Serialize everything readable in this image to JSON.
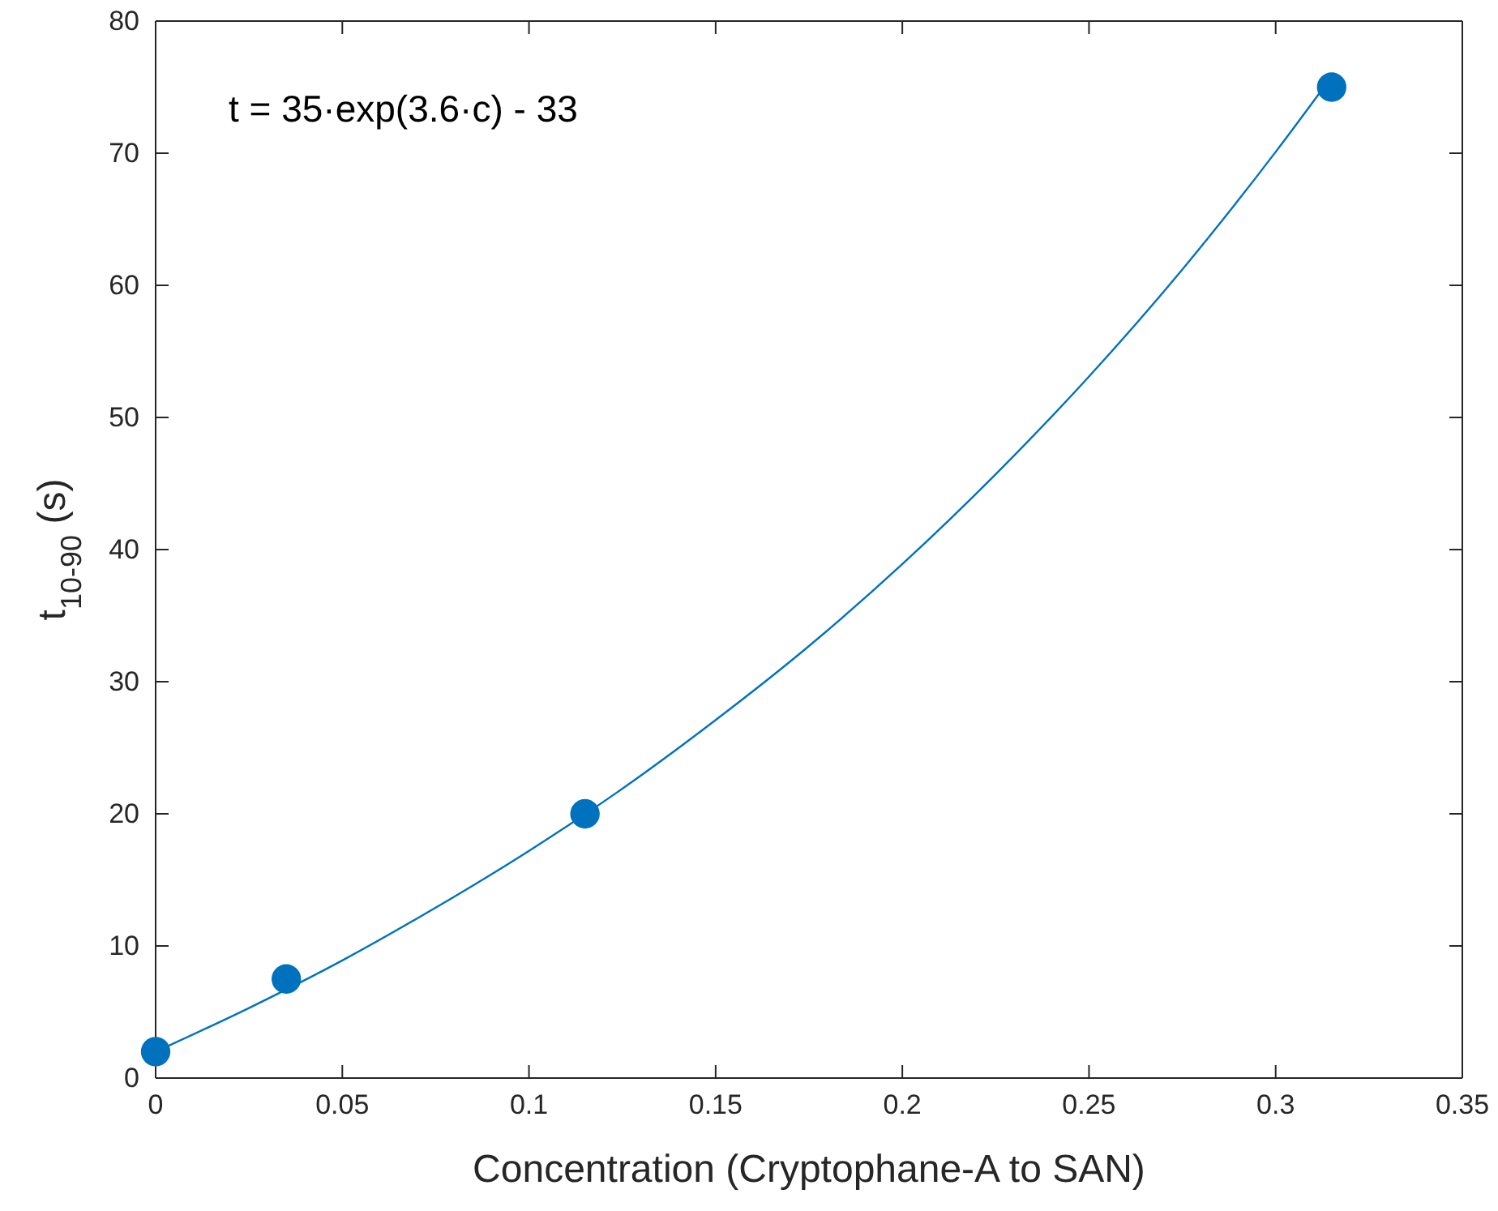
{
  "chart_data": {
    "type": "scatter",
    "xlabel": "Concentration (Cryptophane-A to SAN)",
    "ylabel": "t$_{10-90}$ (s)",
    "annotations": [
      "t = 35·exp(3.6·c) - 33"
    ],
    "xlim": [
      0,
      0.35
    ],
    "xticks": [
      0,
      0.05,
      0.1,
      0.15,
      0.2,
      0.25,
      0.3,
      0.35
    ],
    "ylim": [
      0,
      80
    ],
    "yticks": [
      0,
      10,
      20,
      30,
      40,
      50,
      60,
      70,
      80
    ],
    "grid": false,
    "series": [
      {
        "color": "#0072bd",
        "marker": "circle",
        "x": [
          0,
          0.035,
          0.115,
          0.315
        ],
        "values": [
          2,
          7.5,
          20,
          75
        ]
      },
      {
        "type": "line",
        "color": "#0072bd",
        "marker": "none",
        "line_style": "solid",
        "x": [
          0,
          0.025,
          0.05,
          0.075,
          0.1,
          0.125,
          0.15,
          0.175,
          0.2,
          0.225,
          0.25,
          0.275,
          0.3,
          0.315
        ],
        "values": [
          2,
          5.3,
          8.9,
          12.9,
          17.2,
          21.9,
          27.1,
          32.7,
          38.9,
          45.7,
          53.1,
          61.2,
          70.1,
          75.8
        ]
      }
    ]
  }
}
